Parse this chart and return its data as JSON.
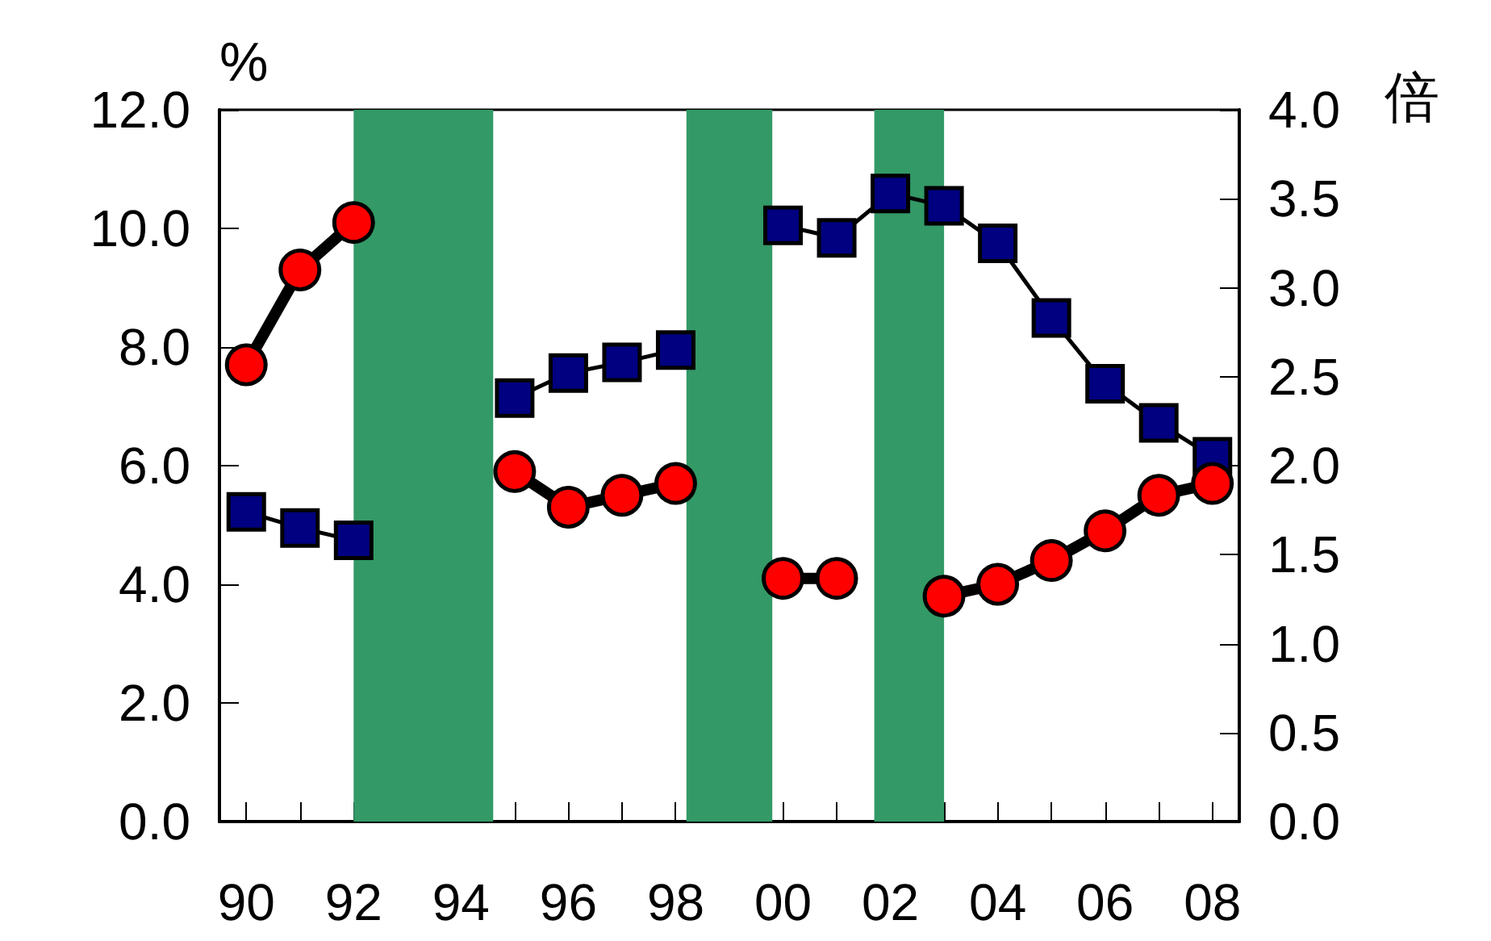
{
  "chart_data": {
    "type": "line",
    "ylabel": "%",
    "y2label": "倍",
    "x": [
      1990,
      1991,
      1992,
      1993,
      1994,
      1995,
      1996,
      1997,
      1998,
      1999,
      2000,
      2001,
      2002,
      2003,
      2004,
      2005,
      2006,
      2007,
      2008
    ],
    "xlim": [
      1989.5,
      2008.5
    ],
    "xticks": [
      {
        "value": 1990,
        "label": "90"
      },
      {
        "value": 1991,
        "label": null
      },
      {
        "value": 1992,
        "label": "92"
      },
      {
        "value": 1993,
        "label": null
      },
      {
        "value": 1994,
        "label": "94"
      },
      {
        "value": 1995,
        "label": null
      },
      {
        "value": 1996,
        "label": "96"
      },
      {
        "value": 1997,
        "label": null
      },
      {
        "value": 1998,
        "label": "98"
      },
      {
        "value": 1999,
        "label": null
      },
      {
        "value": 2000,
        "label": "00"
      },
      {
        "value": 2001,
        "label": null
      },
      {
        "value": 2002,
        "label": "02"
      },
      {
        "value": 2003,
        "label": null
      },
      {
        "value": 2004,
        "label": "04"
      },
      {
        "value": 2005,
        "label": null
      },
      {
        "value": 2006,
        "label": "06"
      },
      {
        "value": 2007,
        "label": null
      },
      {
        "value": 2008,
        "label": "08"
      }
    ],
    "ylim": [
      0,
      12
    ],
    "yticks": [
      {
        "value": 0,
        "label": "0.0"
      },
      {
        "value": 2,
        "label": "2.0"
      },
      {
        "value": 4,
        "label": "4.0"
      },
      {
        "value": 6,
        "label": "6.0"
      },
      {
        "value": 8,
        "label": "8.0"
      },
      {
        "value": 10,
        "label": "10.0"
      },
      {
        "value": 12,
        "label": "12.0"
      }
    ],
    "y2lim": [
      0,
      4
    ],
    "y2ticks": [
      {
        "value": 0,
        "label": "0.0"
      },
      {
        "value": 0.5,
        "label": "0.5"
      },
      {
        "value": 1,
        "label": "1.0"
      },
      {
        "value": 1.5,
        "label": "1.5"
      },
      {
        "value": 2,
        "label": "2.0"
      },
      {
        "value": 2.5,
        "label": "2.5"
      },
      {
        "value": 3,
        "label": "3.0"
      },
      {
        "value": 3.5,
        "label": "3.5"
      },
      {
        "value": 4,
        "label": "4.0"
      }
    ],
    "series": [
      {
        "color": "#ff0000",
        "marker": "circle",
        "values": [
          7.7,
          9.3,
          10.1,
          null,
          null,
          5.9,
          5.3,
          5.5,
          5.7,
          null,
          4.1,
          4.1,
          null,
          3.8,
          4.0,
          4.4,
          4.9,
          5.5,
          5.7
        ]
      },
      {
        "color": "#000080",
        "marker": "square",
        "axis": "y2",
        "values": [
          1.74,
          1.65,
          1.58,
          null,
          null,
          2.38,
          2.52,
          2.58,
          2.65,
          null,
          3.35,
          3.28,
          3.53,
          3.46,
          3.25,
          2.83,
          2.46,
          2.24,
          2.05
        ]
      }
    ],
    "bands": [
      {
        "axis": "x",
        "from": 1992,
        "to": 1994.6,
        "color": "#339966"
      },
      {
        "axis": "x",
        "from": 1998.2,
        "to": 1999.8,
        "color": "#339966"
      },
      {
        "axis": "x",
        "from": 2001.7,
        "to": 2003,
        "color": "#339966"
      }
    ]
  }
}
